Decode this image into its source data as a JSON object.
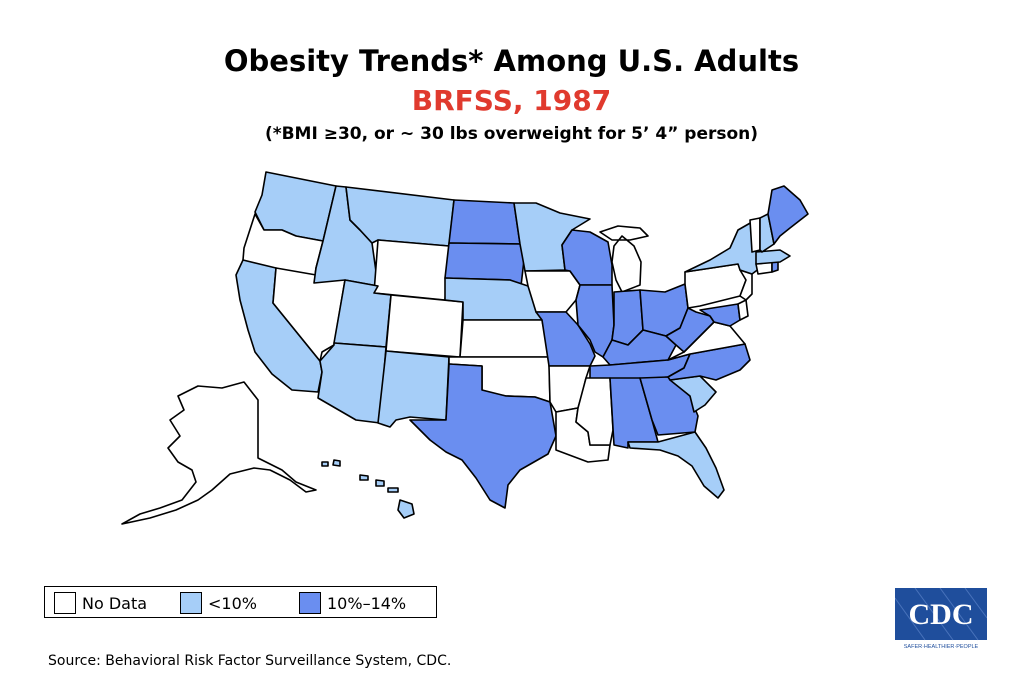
{
  "title": "Obesity Trends* Among U.S. Adults",
  "subtitle": "BRFSS, 1987",
  "note": "(*BMI ≥30, or ~ 30 lbs overweight for 5’ 4” person)",
  "colors": {
    "no_data": "#ffffff",
    "low": "#a6cef8",
    "mid": "#6a8ef0",
    "subtitle": "#e03a2e",
    "cdc_blue": "#1f4e9c"
  },
  "legend": [
    {
      "label": "No Data",
      "category": "no_data"
    },
    {
      "label": "<10%",
      "category": "low"
    },
    {
      "label": "10%–14%",
      "category": "mid"
    }
  ],
  "states": {
    "no_data": [
      "OR",
      "NV",
      "WY",
      "CO",
      "KS",
      "OK",
      "AR",
      "IA",
      "MS",
      "LA",
      "MI",
      "VA",
      "PA",
      "VT",
      "NJ",
      "DE",
      "CT",
      "AK"
    ],
    "low": [
      "WA",
      "ID",
      "MT",
      "CA",
      "UT",
      "AZ",
      "NM",
      "NE",
      "MN",
      "NY",
      "NH",
      "MA",
      "SC",
      "FL",
      "HI"
    ],
    "mid": [
      "ND",
      "SD",
      "TX",
      "MO",
      "WI",
      "IL",
      "IN",
      "OH",
      "KY",
      "TN",
      "WV",
      "MD",
      "NC",
      "AL",
      "GA",
      "ME",
      "RI"
    ]
  },
  "source": "Source: Behavioral Risk Factor Surveillance System, CDC.",
  "logo": {
    "text": "CDC",
    "tagline": "SAFER·HEALTHIER·PEOPLE"
  }
}
